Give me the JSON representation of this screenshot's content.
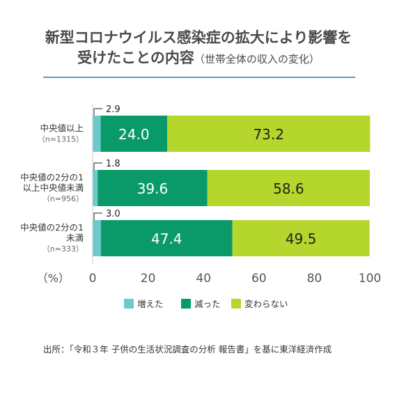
{
  "title": {
    "line1": "新型コロナウイルス感染症の拡大により影響を",
    "line2_main": "受けたことの内容",
    "line2_sub": "（世帯全体の収入の変化）"
  },
  "chart_data": {
    "type": "bar",
    "orientation": "horizontal",
    "stacked": true,
    "categories": [
      [
        "中央値以上",
        "（n=1315）"
      ],
      [
        "中央値の2分の1",
        "以上中央値未満",
        "（n=956）"
      ],
      [
        "中央値の2分の1",
        "未満",
        "（n=333）"
      ]
    ],
    "series": [
      {
        "name": "増えた",
        "color": "#6cc9cc",
        "values": [
          2.9,
          1.8,
          3.0
        ]
      },
      {
        "name": "減った",
        "color": "#0a9a6a",
        "values": [
          24.0,
          39.6,
          47.4
        ]
      },
      {
        "name": "変わらない",
        "color": "#b5d62c",
        "values": [
          73.2,
          58.6,
          49.5
        ]
      }
    ],
    "xlim": [
      0,
      100
    ],
    "xticks": [
      "0",
      "20",
      "40",
      "60",
      "80",
      "100"
    ],
    "xunit": "（%）",
    "legend_position": "bottom",
    "grid": false
  },
  "source": "出所：「令和３年 子供の生活状況調査の分析 報告書」を基に東洋経済作成"
}
